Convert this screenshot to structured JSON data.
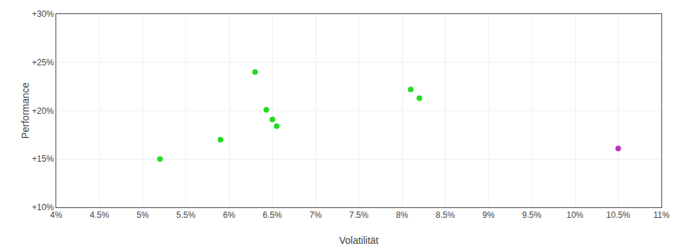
{
  "chart_data": {
    "type": "scatter",
    "xlabel": "Volatilität",
    "ylabel": "Performance",
    "xlim": [
      0.04,
      0.11
    ],
    "ylim": [
      0.1,
      0.3
    ],
    "xticks": [
      {
        "value": 0.04,
        "label": "4%"
      },
      {
        "value": 0.045,
        "label": "4.5%"
      },
      {
        "value": 0.05,
        "label": "5%"
      },
      {
        "value": 0.055,
        "label": "5.5%"
      },
      {
        "value": 0.06,
        "label": "6%"
      },
      {
        "value": 0.065,
        "label": "6.5%"
      },
      {
        "value": 0.07,
        "label": "7%"
      },
      {
        "value": 0.075,
        "label": "7.5%"
      },
      {
        "value": 0.08,
        "label": "8%"
      },
      {
        "value": 0.085,
        "label": "8.5%"
      },
      {
        "value": 0.09,
        "label": "9%"
      },
      {
        "value": 0.095,
        "label": "9.5%"
      },
      {
        "value": 0.1,
        "label": "10%"
      },
      {
        "value": 0.105,
        "label": "10.5%"
      },
      {
        "value": 0.11,
        "label": "11%"
      }
    ],
    "yticks": [
      {
        "value": 0.1,
        "label": "+10%"
      },
      {
        "value": 0.15,
        "label": "+15%"
      },
      {
        "value": 0.2,
        "label": "+20%"
      },
      {
        "value": 0.25,
        "label": "+25%"
      },
      {
        "value": 0.3,
        "label": "+30%"
      }
    ],
    "grid": true,
    "series": [
      {
        "color": "#22dd22",
        "x": [
          0.052,
          0.059,
          0.063,
          0.0643,
          0.065,
          0.0655,
          0.081,
          0.082
        ],
        "values": [
          0.15,
          0.17,
          0.24,
          0.201,
          0.191,
          0.184,
          0.222,
          0.213
        ]
      },
      {
        "color": "#bb33bb",
        "x": [
          0.105
        ],
        "values": [
          0.161
        ]
      }
    ]
  }
}
